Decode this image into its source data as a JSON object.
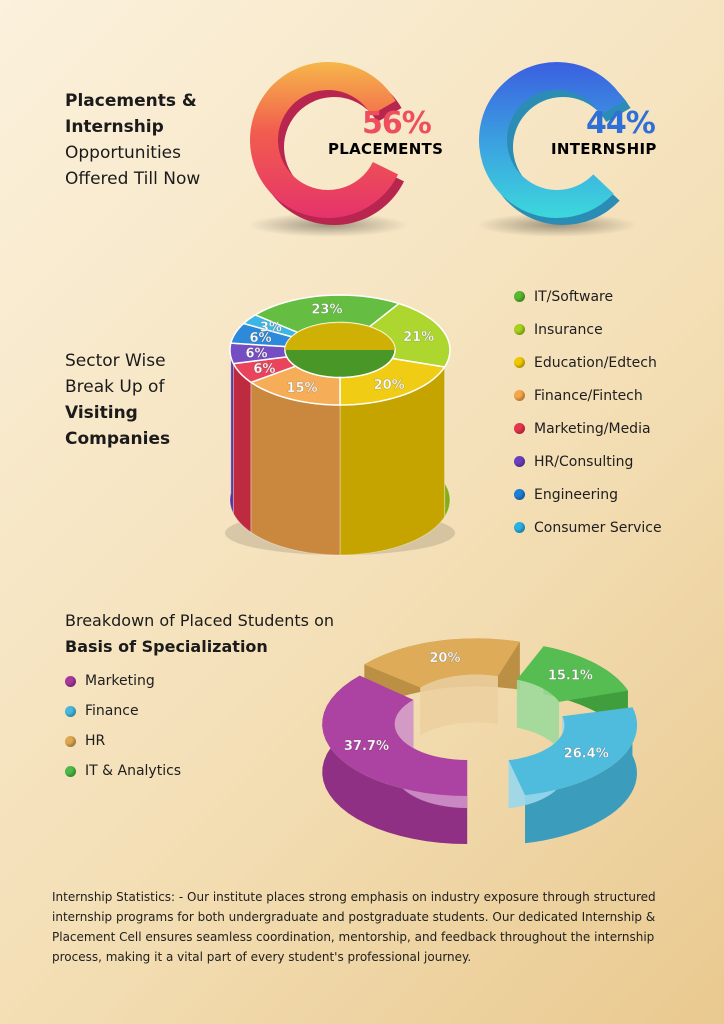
{
  "section1": {
    "title_line1": "Placements &",
    "title_line2": "Internship",
    "title_line3": "Opportunities",
    "title_line4": "Offered Till Now"
  },
  "section2": {
    "title_line1": "Sector Wise",
    "title_line2": "Break Up of",
    "title_line3": "Visiting",
    "title_line4": "Companies"
  },
  "section3": {
    "title_line1": "Breakdown of Placed Students on",
    "title_line2": "Basis of Specialization"
  },
  "paragraph": "Internship Statistics: - Our institute places strong emphasis on industry exposure through structured internship programs for both undergraduate and postgraduate students. Our dedicated Internship & Placement Cell ensures seamless coordination, mentorship, and feedback throughout the internship process, making it a vital part of every student's professional journey.",
  "chart_data": [
    {
      "type": "pie",
      "categories": [
        "PLACEMENTS",
        "INTERNSHIP"
      ],
      "values": [
        56,
        44
      ],
      "data_labels": [
        "56%",
        "44%"
      ],
      "colors": [
        "#ef4d5a",
        "#3aa3e0"
      ]
    },
    {
      "type": "pie",
      "categories": [
        "IT/Software",
        "Insurance",
        "Education/Edtech",
        "Finance/Fintech",
        "Marketing/Media",
        "HR/Consulting",
        "Engineering",
        "Consumer Service"
      ],
      "values": [
        23,
        21,
        20,
        15,
        6,
        6,
        6,
        3
      ],
      "data_labels": [
        "23%",
        "21%",
        "20%",
        "15%",
        "6%",
        "6%",
        "6%",
        "3%"
      ],
      "colors": [
        "#58b830",
        "#a6d21c",
        "#f0c800",
        "#f5a64a",
        "#e8344e",
        "#6a3fbf",
        "#1b7fd6",
        "#2bb0e3"
      ],
      "legend": "right"
    },
    {
      "type": "pie",
      "categories": [
        "Marketing",
        "Finance",
        "HR",
        "IT & Analytics"
      ],
      "values": [
        37.7,
        26.4,
        20,
        15.1
      ],
      "data_labels": [
        "37.7%",
        "26.4%",
        "20%",
        "15.1%"
      ],
      "colors": [
        "#a8389c",
        "#46b8dc",
        "#dca850",
        "#4cba48"
      ],
      "legend": "left"
    }
  ]
}
